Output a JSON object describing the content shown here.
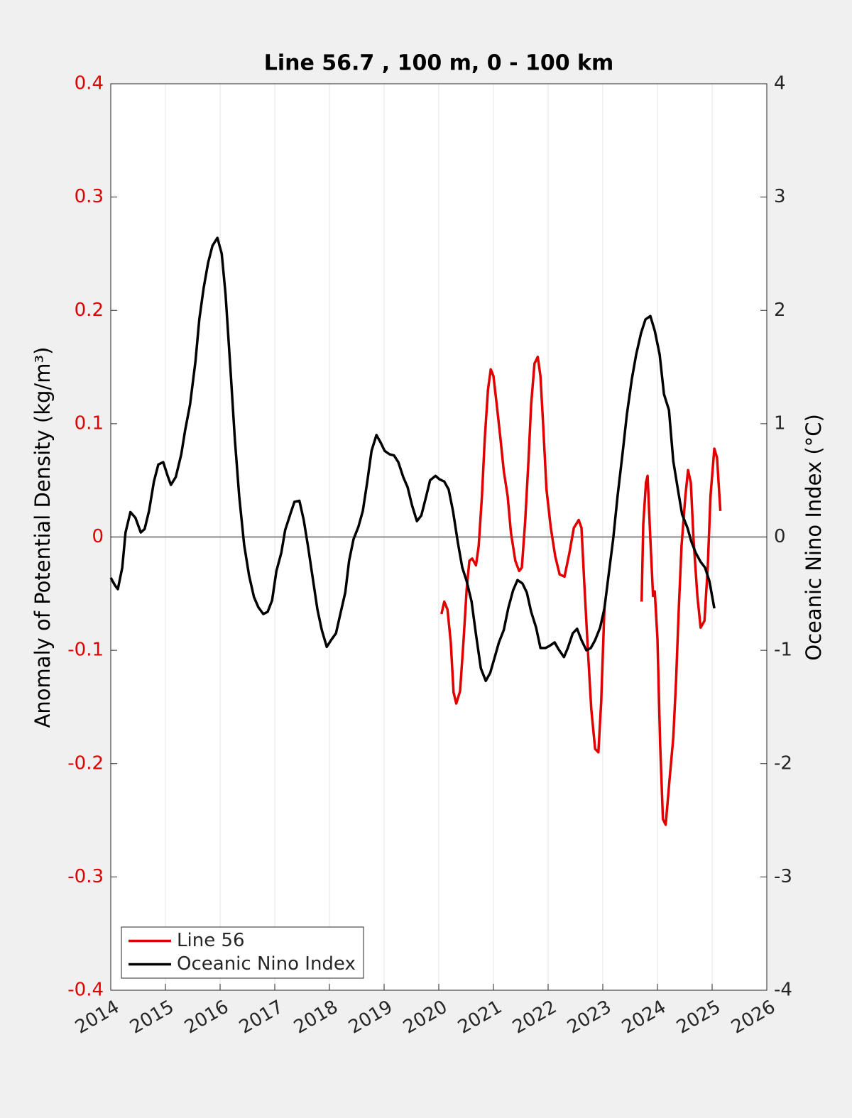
{
  "chart_data": {
    "type": "line",
    "title": "Line 56.7 , 100 m, 0 - 100 km",
    "ylabel": "Anomaly of Potential Density (kg/m³)",
    "y2label": "Oceanic Nino Index (°C)",
    "xlim": [
      2014,
      2026
    ],
    "xticks": [
      2014,
      2015,
      2016,
      2017,
      2018,
      2019,
      2020,
      2021,
      2022,
      2023,
      2024,
      2025,
      2026
    ],
    "ylim": [
      -0.4,
      0.4
    ],
    "yticks": [
      -0.4,
      -0.3,
      -0.2,
      -0.1,
      0,
      0.1,
      0.2,
      0.3,
      0.4
    ],
    "y2lim": [
      -4,
      4
    ],
    "y2ticks": [
      -4,
      -3,
      -2,
      -1,
      0,
      1,
      2,
      3,
      4
    ],
    "ycolor": "#e00000",
    "grid": true,
    "hline": 0,
    "legend": "lower left",
    "series": [
      {
        "name": "Line 56",
        "color": "#e00000",
        "axis": "y",
        "x": [
          2020.05,
          2020.1,
          2020.16,
          2020.22,
          2020.27,
          2020.32,
          2020.39,
          2020.45,
          2020.51,
          2020.56,
          2020.61,
          2020.68,
          2020.73,
          2020.79,
          2020.84,
          2020.9,
          2020.95,
          2021.0,
          2021.06,
          2021.13,
          2021.19,
          2021.26,
          2021.32,
          2021.4,
          2021.47,
          2021.52,
          2021.58,
          2021.64,
          2021.69,
          2021.75,
          2021.81,
          2021.86,
          2021.91,
          2021.97,
          2022.05,
          2022.13,
          2022.21,
          2022.3,
          2022.39,
          2022.47,
          2022.56,
          2022.61,
          2022.66,
          2022.73,
          2022.79,
          2022.86,
          2022.92,
          2022.97,
          2023.03,
          2023.37,
          2023.71,
          2023.74,
          2023.79,
          2023.82,
          2023.87,
          2023.92,
          2023.95,
          2024.0,
          2024.05,
          2024.1,
          2024.15,
          2024.22,
          2024.29,
          2024.34,
          2024.39,
          2024.44,
          2024.51,
          2024.56,
          2024.61,
          2024.66,
          2024.73,
          2024.79,
          2024.86,
          2024.92,
          2024.97,
          2025.04,
          2025.09,
          2025.15
        ],
        "values": [
          -0.068,
          -0.057,
          -0.064,
          -0.093,
          -0.137,
          -0.147,
          -0.136,
          -0.093,
          -0.046,
          -0.021,
          -0.019,
          -0.025,
          -0.008,
          0.036,
          0.086,
          0.13,
          0.148,
          0.142,
          0.117,
          0.086,
          0.058,
          0.036,
          0.004,
          -0.021,
          -0.03,
          -0.027,
          0.014,
          0.067,
          0.117,
          0.153,
          0.159,
          0.142,
          0.098,
          0.042,
          0.008,
          -0.017,
          -0.033,
          -0.035,
          -0.014,
          0.008,
          0.015,
          0.008,
          -0.039,
          -0.102,
          -0.152,
          -0.187,
          -0.19,
          -0.146,
          -0.063,
          null,
          -0.057,
          0.011,
          0.048,
          0.054,
          -0.002,
          -0.052,
          -0.048,
          -0.09,
          -0.183,
          -0.249,
          -0.254,
          -0.215,
          -0.177,
          -0.127,
          -0.064,
          -0.008,
          0.036,
          0.059,
          0.048,
          -0.002,
          -0.052,
          -0.08,
          -0.074,
          -0.027,
          0.036,
          0.078,
          0.07,
          0.023
        ]
      },
      {
        "name": "Oceanic Nino Index",
        "color": "#000000",
        "axis": "y2",
        "x": [
          2014.0,
          2014.08,
          2014.13,
          2014.21,
          2014.27,
          2014.36,
          2014.45,
          2014.55,
          2014.62,
          2014.7,
          2014.79,
          2014.87,
          2014.96,
          2015.04,
          2015.1,
          2015.19,
          2015.29,
          2015.36,
          2015.45,
          2015.55,
          2015.62,
          2015.7,
          2015.78,
          2015.86,
          2015.95,
          2016.03,
          2016.1,
          2016.19,
          2016.27,
          2016.35,
          2016.44,
          2016.53,
          2016.62,
          2016.7,
          2016.79,
          2016.87,
          2016.95,
          2017.03,
          2017.12,
          2017.19,
          2017.29,
          2017.36,
          2017.45,
          2017.53,
          2017.61,
          2017.7,
          2017.78,
          2017.86,
          2017.95,
          2018.03,
          2018.12,
          2018.19,
          2018.29,
          2018.36,
          2018.44,
          2018.53,
          2018.61,
          2018.69,
          2018.77,
          2018.86,
          2018.94,
          2019.01,
          2019.1,
          2019.18,
          2019.26,
          2019.35,
          2019.43,
          2019.51,
          2019.6,
          2019.68,
          2019.77,
          2019.84,
          2019.94,
          2020.01,
          2020.1,
          2020.18,
          2020.26,
          2020.35,
          2020.43,
          2020.51,
          2020.6,
          2020.68,
          2020.77,
          2020.86,
          2020.94,
          2021.03,
          2021.1,
          2021.19,
          2021.27,
          2021.36,
          2021.44,
          2021.53,
          2021.61,
          2021.69,
          2021.78,
          2021.86,
          2021.95,
          2022.03,
          2022.12,
          2022.19,
          2022.29,
          2022.36,
          2022.45,
          2022.53,
          2022.61,
          2022.7,
          2022.78,
          2022.86,
          2022.95,
          2023.03,
          2023.1,
          2023.19,
          2023.27,
          2023.36,
          2023.44,
          2023.53,
          2023.61,
          2023.7,
          2023.78,
          2023.87,
          2023.95,
          2024.04,
          2024.12,
          2024.21,
          2024.29,
          2024.38,
          2024.45,
          2024.55,
          2024.62,
          2024.7,
          2024.79,
          2024.87,
          2024.95,
          2025.04
        ],
        "values": [
          -0.36,
          -0.43,
          -0.46,
          -0.27,
          0.04,
          0.22,
          0.17,
          0.04,
          0.07,
          0.23,
          0.49,
          0.64,
          0.66,
          0.54,
          0.46,
          0.53,
          0.73,
          0.94,
          1.17,
          1.55,
          1.92,
          2.2,
          2.42,
          2.57,
          2.64,
          2.5,
          2.14,
          1.48,
          0.86,
          0.36,
          -0.07,
          -0.34,
          -0.53,
          -0.62,
          -0.68,
          -0.66,
          -0.56,
          -0.3,
          -0.14,
          0.06,
          0.21,
          0.31,
          0.32,
          0.15,
          -0.09,
          -0.38,
          -0.64,
          -0.82,
          -0.97,
          -0.91,
          -0.85,
          -0.7,
          -0.49,
          -0.21,
          -0.02,
          0.09,
          0.23,
          0.48,
          0.76,
          0.9,
          0.83,
          0.76,
          0.73,
          0.72,
          0.66,
          0.53,
          0.44,
          0.28,
          0.14,
          0.19,
          0.36,
          0.5,
          0.54,
          0.51,
          0.49,
          0.42,
          0.23,
          -0.05,
          -0.27,
          -0.39,
          -0.57,
          -0.86,
          -1.16,
          -1.27,
          -1.2,
          -1.05,
          -0.93,
          -0.82,
          -0.63,
          -0.47,
          -0.38,
          -0.41,
          -0.49,
          -0.66,
          -0.8,
          -0.98,
          -0.98,
          -0.96,
          -0.93,
          -0.99,
          -1.06,
          -0.98,
          -0.85,
          -0.81,
          -0.91,
          -1.0,
          -0.98,
          -0.91,
          -0.8,
          -0.63,
          -0.36,
          -0.02,
          0.36,
          0.73,
          1.08,
          1.39,
          1.61,
          1.8,
          1.92,
          1.95,
          1.82,
          1.61,
          1.26,
          1.12,
          0.67,
          0.4,
          0.2,
          0.08,
          -0.04,
          -0.14,
          -0.22,
          -0.27,
          -0.39,
          -0.63
        ]
      }
    ]
  }
}
